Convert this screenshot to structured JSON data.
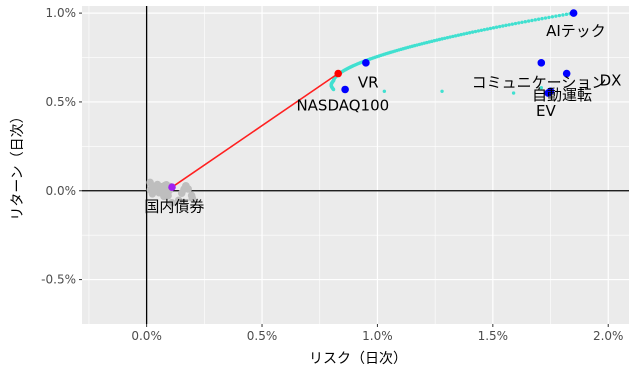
{
  "chart_data": {
    "type": "scatter",
    "xlabel": "リスク（日次）",
    "ylabel": "リターン（日次）",
    "xlim": [
      -0.0028,
      0.0209
    ],
    "ylim": [
      -0.0075,
      0.0104
    ],
    "x_ticks": [
      {
        "value": 0.0,
        "label": "0.0%"
      },
      {
        "value": 0.005,
        "label": "0.5%"
      },
      {
        "value": 0.01,
        "label": "1.0%"
      },
      {
        "value": 0.015,
        "label": "1.5%"
      },
      {
        "value": 0.02,
        "label": "2.0%"
      }
    ],
    "y_ticks": [
      {
        "value": -0.005,
        "label": "-0.5%"
      },
      {
        "value": 0.0,
        "label": "0.0%"
      },
      {
        "value": 0.005,
        "label": "0.5%"
      },
      {
        "value": 0.01,
        "label": "1.0%"
      }
    ],
    "grid": true,
    "colors": {
      "panel": "#ebebeb",
      "grid": "#ffffff",
      "candidate": "#bebebe",
      "frontier": "#40e0d0",
      "capital_line": "#ff2020",
      "tangency": "#ff0000",
      "labeled": "#0000ff",
      "risk_free": "#a020f0",
      "reference_lines": "#000000"
    },
    "background_points": [
      [
        0.00015,
        0.00047
      ],
      [
        0.00032,
        0.00025
      ],
      [
        0.00047,
        0.00035
      ],
      [
        0.0006,
        0.00023
      ],
      [
        0.00053,
        0.00019
      ],
      [
        0.0004,
        0.00011
      ],
      [
        0.00075,
        0.00025
      ],
      [
        0.00077,
        0.00021
      ],
      [
        0.00079,
        0.00029
      ],
      [
        0.00085,
        0.00033
      ],
      [
        0.00086,
        0.00033
      ],
      [
        0.0007,
        1e-05
      ],
      [
        0.00077,
        0.00013
      ],
      [
        0.001,
        0.00024
      ],
      [
        0.00103,
        0.00023
      ],
      [
        0.00089,
        -0.00016
      ],
      [
        0.00093,
        -0.00028
      ],
      [
        0.00098,
        2e-05
      ],
      [
        0.00079,
        -0.0003
      ],
      [
        0.00075,
        -0.00031
      ],
      [
        0.00054,
        -3e-05
      ],
      [
        0.00054,
        -0.00011
      ],
      [
        0.00025,
        -0.00017
      ],
      [
        0.00016,
        6e-05
      ],
      [
        0.00109,
        -0.00068
      ],
      [
        0.00139,
        -0.00054
      ],
      [
        0.00152,
        -0.00014
      ],
      [
        0.00162,
        9e-05
      ],
      [
        0.0017,
        0.00028
      ],
      [
        0.0018,
        0.0001
      ],
      [
        0.00195,
        -0.00027
      ],
      [
        0.00198,
        -0.00042
      ]
    ],
    "frontier_start": {
      "x": 0.0081,
      "y": 0.0057
    },
    "frontier_vertex": {
      "x": 0.0081,
      "y": 0.0062
    },
    "frontier_end": {
      "x": 0.0185,
      "y": 0.01
    },
    "capital_market_line": [
      [
        0.0011,
        0.0002
      ],
      [
        0.0083,
        0.0066
      ]
    ],
    "tangency_point": {
      "x": 0.0083,
      "y": 0.0066
    },
    "risk_free_point": {
      "x": 0.0011,
      "y": 0.0002
    },
    "extra_frontier_points": [
      [
        0.0103,
        0.0056
      ],
      [
        0.0128,
        0.0056
      ],
      [
        0.0159,
        0.0055
      ],
      [
        0.0171,
        0.0058
      ]
    ],
    "labeled_points": [
      {
        "name": "AIテック",
        "x": 0.0185,
        "y": 0.01
      },
      {
        "name": "コミュニケーションDX",
        "x": 0.0171,
        "y": 0.0072
      },
      {
        "name": "DX",
        "x": 0.0182,
        "y": 0.0066
      },
      {
        "name": "自動運転",
        "x": 0.0175,
        "y": 0.0056
      },
      {
        "name": "EV",
        "x": 0.0174,
        "y": 0.0055
      },
      {
        "name": "VR",
        "x": 0.0095,
        "y": 0.0072
      },
      {
        "name": "NASDAQ100",
        "x": 0.0086,
        "y": 0.0057
      },
      {
        "name": "国内債券",
        "x": 0.0011,
        "y": 0.0002
      }
    ],
    "labels": [
      {
        "text": "AIテック",
        "x": 0.0186,
        "y": 0.009
      },
      {
        "text": "コミュニケーション",
        "x": 0.017,
        "y": 0.0061
      },
      {
        "text": "DX",
        "x": 0.0201,
        "y": 0.0062
      },
      {
        "text": "自動運転",
        "x": 0.018,
        "y": 0.0054
      },
      {
        "text": "EV",
        "x": 0.0173,
        "y": 0.0045
      },
      {
        "text": "VR",
        "x": 0.0096,
        "y": 0.0061
      },
      {
        "text": "NASDAQ100",
        "x": 0.0085,
        "y": 0.0048
      },
      {
        "text": "国内債券",
        "x": 0.0012,
        "y": -0.0009
      }
    ]
  }
}
